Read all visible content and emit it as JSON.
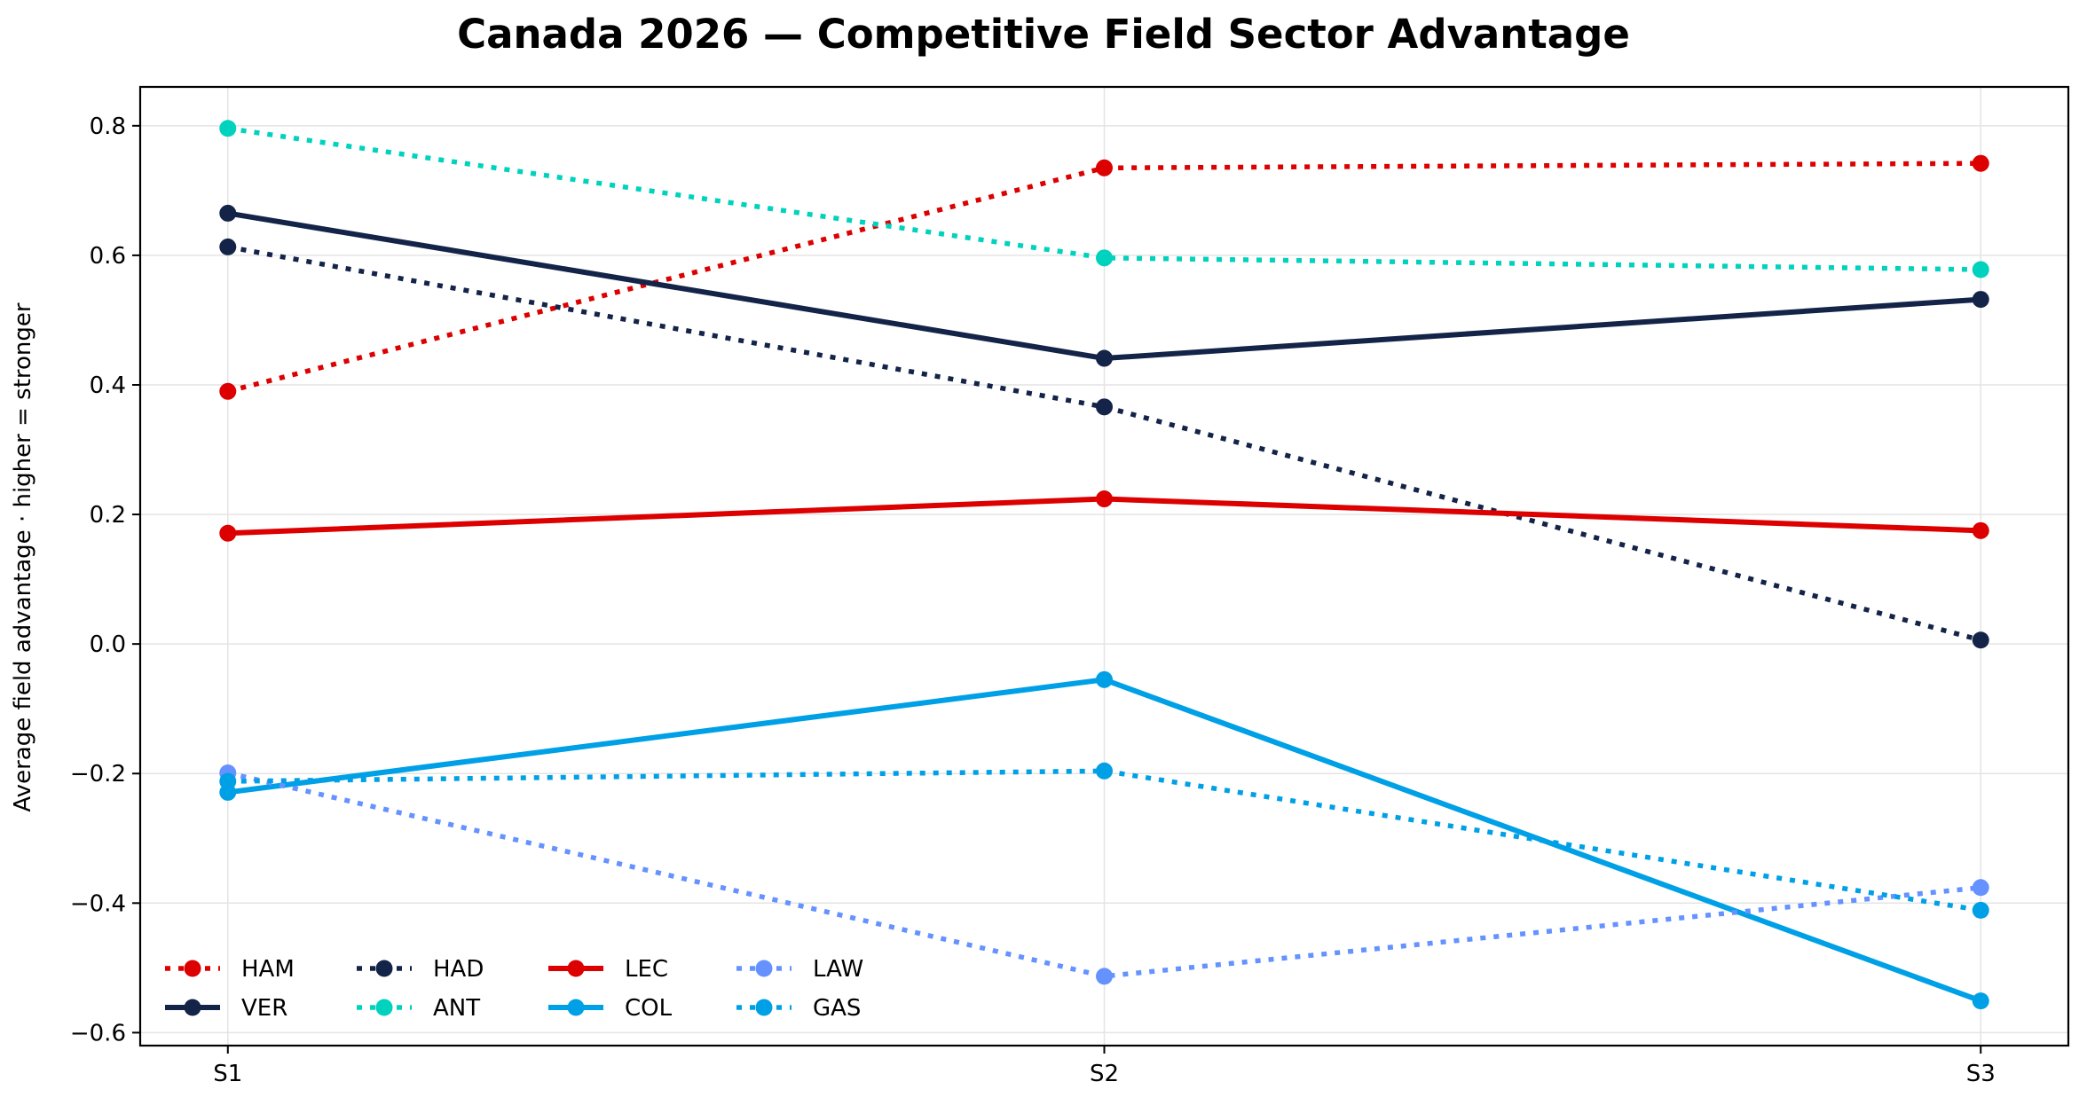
{
  "chart_data": {
    "type": "line",
    "title": "Canada 2026 — Competitive Field Sector Advantage",
    "xlabel": "",
    "ylabel": "Average field advantage · higher = stronger",
    "categories": [
      "S1",
      "S2",
      "S3"
    ],
    "xlim": [
      -0.1,
      2.1
    ],
    "ylim": [
      -0.62,
      0.86
    ],
    "yticks": [
      -0.6,
      -0.4,
      -0.2,
      0.0,
      0.2,
      0.4,
      0.6,
      0.8
    ],
    "ytick_labels": [
      "−0.6",
      "−0.4",
      "−0.2",
      "0.0",
      "0.2",
      "0.4",
      "0.6",
      "0.8"
    ],
    "grid": true,
    "legend_position": "lower-left",
    "series": [
      {
        "name": "HAM",
        "color": "#dc0000",
        "style": "dotted",
        "values": [
          0.39,
          0.735,
          0.742
        ]
      },
      {
        "name": "VER",
        "color": "#142448",
        "style": "solid",
        "values": [
          0.665,
          0.441,
          0.532
        ]
      },
      {
        "name": "HAD",
        "color": "#142448",
        "style": "dotted",
        "values": [
          0.613,
          0.366,
          0.006
        ]
      },
      {
        "name": "ANT",
        "color": "#00d2be",
        "style": "dotted",
        "values": [
          0.796,
          0.596,
          0.578
        ]
      },
      {
        "name": "LEC",
        "color": "#dc0000",
        "style": "solid",
        "values": [
          0.171,
          0.224,
          0.175
        ]
      },
      {
        "name": "COL",
        "color": "#00a0e6",
        "style": "solid",
        "values": [
          -0.229,
          -0.055,
          -0.551
        ]
      },
      {
        "name": "LAW",
        "color": "#6692ff",
        "style": "dotted",
        "values": [
          -0.199,
          -0.513,
          -0.376
        ]
      },
      {
        "name": "GAS",
        "color": "#00a0e6",
        "style": "dotted",
        "values": [
          -0.212,
          -0.196,
          -0.411
        ]
      }
    ]
  }
}
